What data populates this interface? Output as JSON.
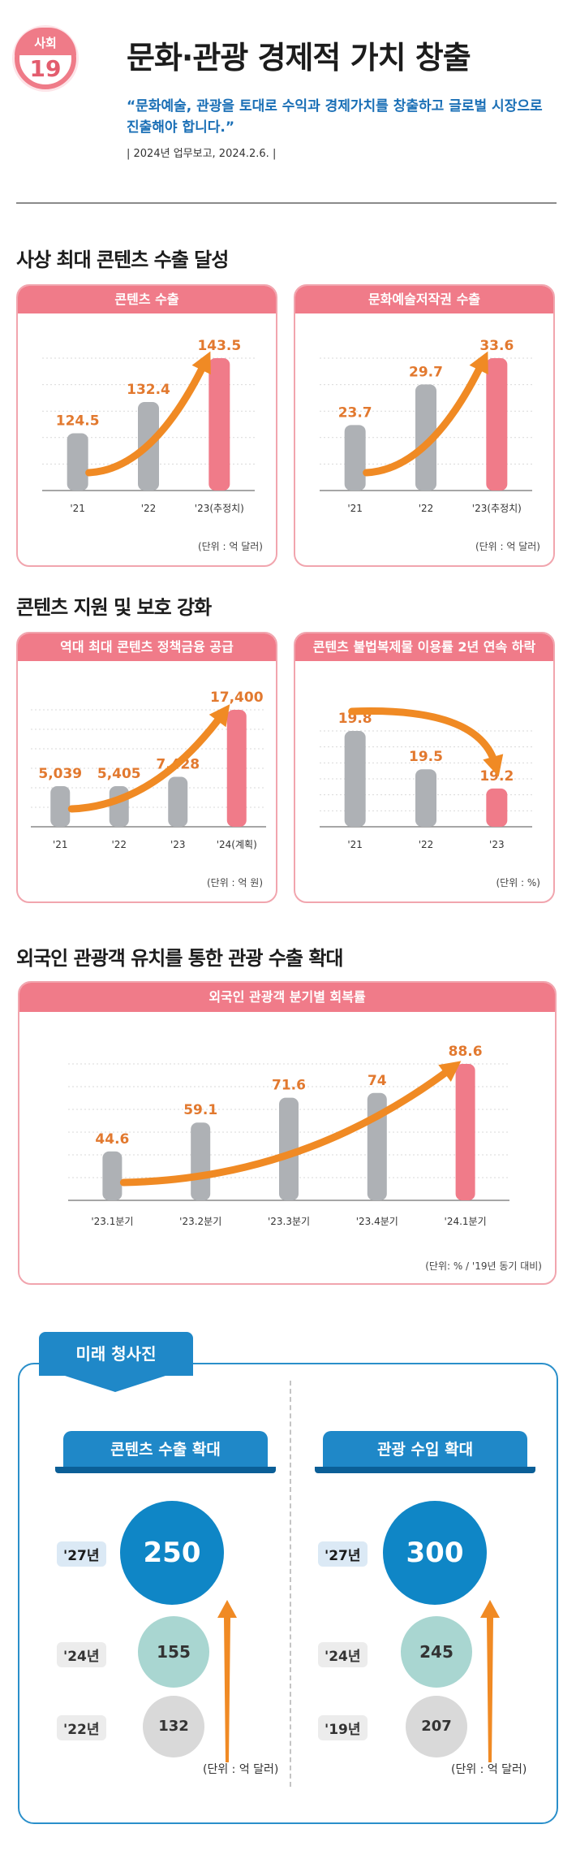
{
  "header": {
    "badge_top": "사회",
    "badge_num": "19",
    "title": "문화·관광 경제적 가치 창출",
    "quote": "“문화예술, 관광을 토대로 수익과 경제가치를 창출하고 글로벌 시장으로 진출해야 합니다.”",
    "source": "| 2024년 업무보고, 2024.2.6. |"
  },
  "sections": {
    "s1": "사상 최대 콘텐츠 수출 달성",
    "s2": "콘텐츠 지원 및 보호 강화",
    "s3": "외국인 관광객 유치를 통한 관광 수출 확대"
  },
  "colors": {
    "pink": "#f07b89",
    "gray": "#aeb1b5",
    "orange": "#f08a24",
    "label": "#e2792f",
    "blue": "#1f88c8"
  },
  "chart_data": [
    {
      "id": "c1",
      "type": "bar",
      "title": "콘텐츠 수출",
      "categories": [
        "'21",
        "'22",
        "'23(추정치)"
      ],
      "values": [
        124.5,
        132.4,
        143.5
      ],
      "value_labels": [
        "124.5",
        "132.4",
        "143.5"
      ],
      "unit": "(단위 : 억 달러)",
      "highlight_last": true,
      "trend": "up"
    },
    {
      "id": "c2",
      "type": "bar",
      "title": "문화예술저작권 수출",
      "categories": [
        "'21",
        "'22",
        "'23(추정치)"
      ],
      "values": [
        23.7,
        29.7,
        33.6
      ],
      "value_labels": [
        "23.7",
        "29.7",
        "33.6"
      ],
      "unit": "(단위 : 억 달러)",
      "highlight_last": true,
      "trend": "up"
    },
    {
      "id": "c3",
      "type": "bar",
      "title": "역대 최대 콘텐츠 정책금융 공급",
      "categories": [
        "'21",
        "'22",
        "'23",
        "'24(계획)"
      ],
      "values": [
        5039,
        5405,
        7428,
        17400
      ],
      "value_labels": [
        "5,039",
        "5,405",
        "7,428",
        "17,400"
      ],
      "unit": "(단위 : 억 원)",
      "highlight_last": true,
      "trend": "up"
    },
    {
      "id": "c4",
      "type": "bar",
      "title": "콘텐츠 불법복제물 이용률 2년 연속 하락",
      "categories": [
        "'21",
        "'22",
        "'23"
      ],
      "values": [
        19.8,
        19.5,
        19.2
      ],
      "value_labels": [
        "19.8",
        "19.5",
        "19.2"
      ],
      "unit": "(단위 : %)",
      "highlight_last": true,
      "trend": "down"
    },
    {
      "id": "c5",
      "type": "bar",
      "title": "외국인 관광객 분기별 회복률",
      "categories": [
        "'23.1분기",
        "'23.2분기",
        "'23.3분기",
        "'23.4분기",
        "'24.1분기"
      ],
      "values": [
        44.6,
        59.1,
        71.6,
        74,
        88.6
      ],
      "value_labels": [
        "44.6",
        "59.1",
        "71.6",
        "74",
        "88.6"
      ],
      "unit": "(단위: % / '19년 동기 대비)",
      "highlight_last": true,
      "trend": "up"
    }
  ],
  "future": {
    "tag": "미래 청사진",
    "left": {
      "title": "콘텐츠 수출 확대",
      "rows": [
        {
          "year": "'27년",
          "value": "250"
        },
        {
          "year": "'24년",
          "value": "155"
        },
        {
          "year": "'22년",
          "value": "132"
        }
      ],
      "unit": "(단위 : 억 달러)"
    },
    "right": {
      "title": "관광 수입 확대",
      "rows": [
        {
          "year": "'27년",
          "value": "300"
        },
        {
          "year": "'24년",
          "value": "245"
        },
        {
          "year": "'19년",
          "value": "207"
        }
      ],
      "unit": "(단위 : 억 달러)"
    }
  }
}
